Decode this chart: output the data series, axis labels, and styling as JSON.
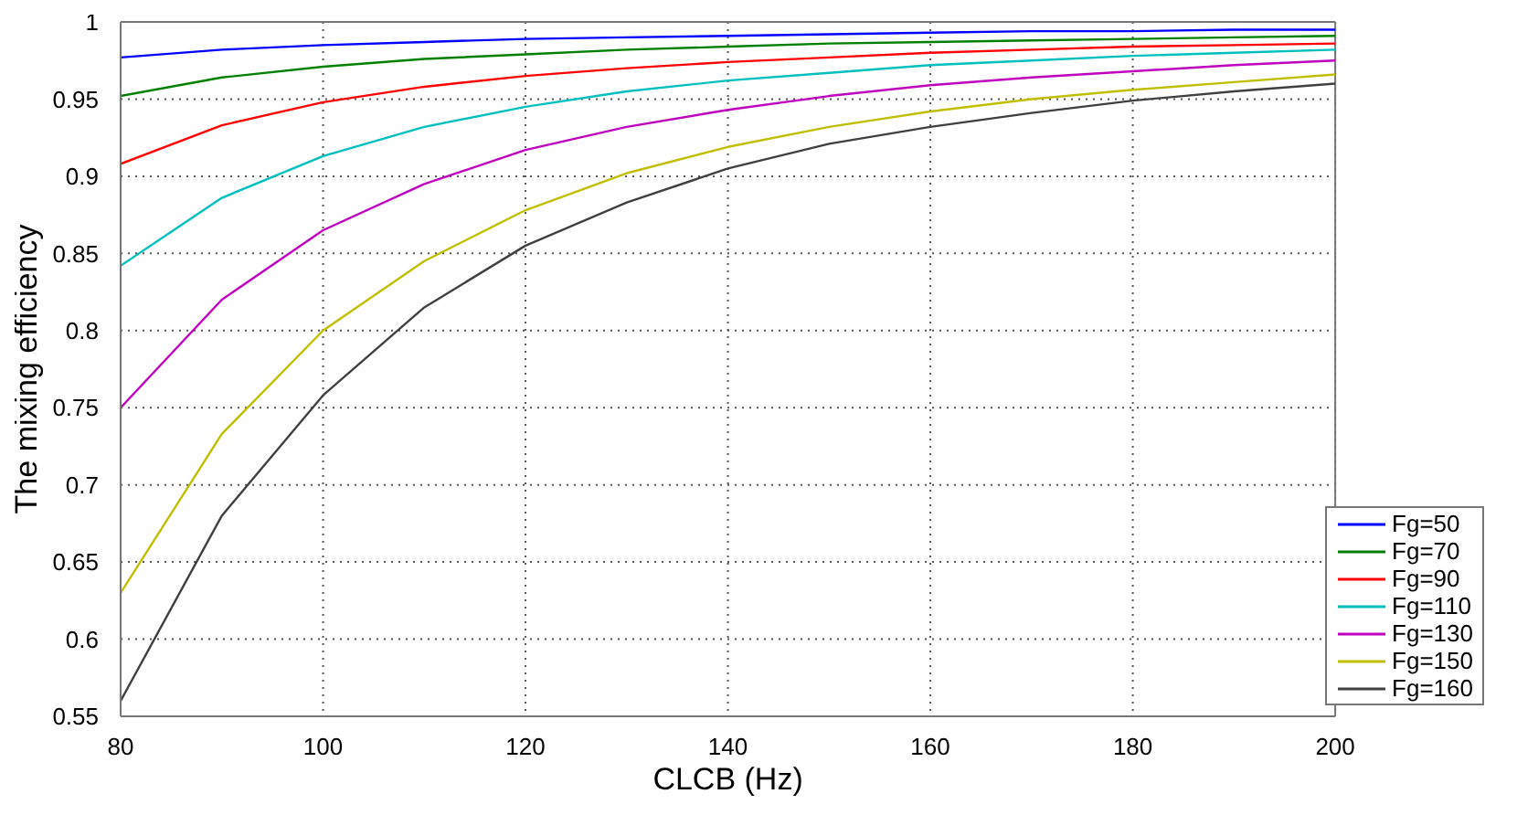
{
  "chart_data": {
    "type": "line",
    "xlabel": "CLCB (Hz)",
    "ylabel": "The mixing efficiency",
    "x": [
      80,
      90,
      100,
      110,
      120,
      130,
      140,
      150,
      160,
      170,
      180,
      190,
      200
    ],
    "xlim": [
      80,
      200
    ],
    "xticks": [
      80,
      100,
      120,
      140,
      160,
      180,
      200
    ],
    "ylim": [
      0.55,
      1
    ],
    "yticks": [
      0.55,
      0.6,
      0.65,
      0.7,
      0.75,
      0.8,
      0.85,
      0.9,
      0.95,
      1
    ],
    "grid": true,
    "legend": "bottom right",
    "marker": "none",
    "line_style": "solid",
    "series": [
      {
        "name": "Fg=50",
        "color": "#0000ff",
        "values": [
          0.977,
          0.982,
          0.985,
          0.987,
          0.989,
          0.99,
          0.991,
          0.992,
          0.993,
          0.994,
          0.994,
          0.995,
          0.995
        ]
      },
      {
        "name": "Fg=70",
        "color": "#008000",
        "values": [
          0.952,
          0.964,
          0.971,
          0.976,
          0.979,
          0.982,
          0.984,
          0.986,
          0.987,
          0.988,
          0.989,
          0.99,
          0.991
        ]
      },
      {
        "name": "Fg=90",
        "color": "#ff0000",
        "values": [
          0.908,
          0.933,
          0.948,
          0.958,
          0.965,
          0.97,
          0.974,
          0.977,
          0.98,
          0.982,
          0.984,
          0.985,
          0.986
        ]
      },
      {
        "name": "Fg=110",
        "color": "#00bfbf",
        "values": [
          0.842,
          0.886,
          0.913,
          0.932,
          0.945,
          0.955,
          0.962,
          0.967,
          0.972,
          0.975,
          0.978,
          0.98,
          0.982
        ]
      },
      {
        "name": "Fg=130",
        "color": "#bf00bf",
        "values": [
          0.75,
          0.82,
          0.865,
          0.895,
          0.917,
          0.932,
          0.943,
          0.952,
          0.959,
          0.964,
          0.968,
          0.972,
          0.975
        ]
      },
      {
        "name": "Fg=150",
        "color": "#bfbf00",
        "values": [
          0.63,
          0.733,
          0.8,
          0.845,
          0.878,
          0.902,
          0.919,
          0.932,
          0.942,
          0.95,
          0.956,
          0.961,
          0.966
        ]
      },
      {
        "name": "Fg=160",
        "color": "#404040",
        "values": [
          0.56,
          0.68,
          0.758,
          0.815,
          0.855,
          0.883,
          0.905,
          0.921,
          0.932,
          0.941,
          0.949,
          0.955,
          0.96
        ]
      }
    ]
  }
}
